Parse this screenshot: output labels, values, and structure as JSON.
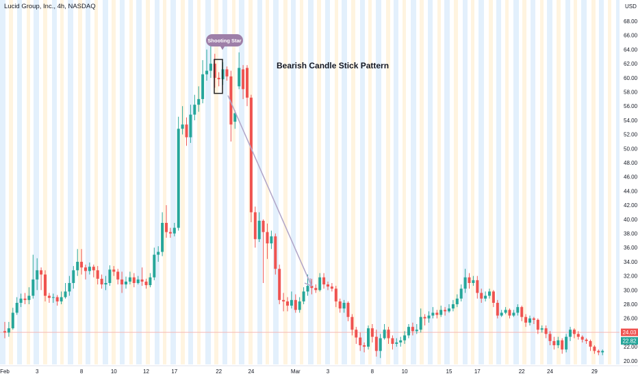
{
  "header": {
    "symbol_title": "Lucid Group, Inc., 4h, NASDAQ",
    "currency": "USD"
  },
  "annotations": {
    "pattern_title": "Bearish Candle Stick Pattern",
    "callout_label": "Shooting Star"
  },
  "price_labels": {
    "last": {
      "value": "24.03",
      "color": "#ef5350"
    },
    "current": {
      "value": "22.82",
      "color": "#26a69a"
    }
  },
  "colors": {
    "up": "#26a69a",
    "down": "#ef5350",
    "arrow": "#b2a7c9",
    "callout": "#9e7fa8",
    "band_blue": "#e3f0fc",
    "band_orange": "#fff4e0"
  },
  "chart_data": {
    "type": "candlestick",
    "title": "Lucid Group, Inc., 4h, NASDAQ",
    "ylabel": "USD",
    "ylim": [
      19.5,
      71
    ],
    "yticks": [
      20,
      22,
      24,
      26,
      28,
      30,
      32,
      34,
      36,
      38,
      40,
      42,
      44,
      46,
      48,
      50,
      52,
      54,
      56,
      58,
      60,
      62,
      64,
      66,
      68
    ],
    "x_tick_labels": [
      "Feb",
      "3",
      "8",
      "10",
      "12",
      "17",
      "22",
      "24",
      "Mar",
      "3",
      "8",
      "10",
      "15",
      "17",
      "22",
      "24",
      "29"
    ],
    "horizontal_line": 24.03,
    "candles": [
      [
        24.2,
        24.0,
        23.2,
        25.5
      ],
      [
        24.0,
        24.6,
        23.4,
        25.5
      ],
      [
        24.6,
        26.8,
        24.4,
        27.5
      ],
      [
        26.8,
        28.2,
        26.5,
        29.0
      ],
      [
        28.2,
        28.8,
        27.6,
        29.5
      ],
      [
        28.8,
        28.6,
        28.0,
        29.6
      ],
      [
        28.6,
        29.2,
        28.0,
        30.4
      ],
      [
        29.2,
        31.5,
        28.8,
        35.0
      ],
      [
        31.5,
        32.8,
        30.0,
        34.5
      ],
      [
        32.8,
        32.2,
        30.0,
        33.2
      ],
      [
        32.2,
        29.2,
        28.4,
        32.8
      ],
      [
        29.2,
        28.9,
        28.2,
        29.6
      ],
      [
        28.9,
        29.0,
        28.2,
        29.5
      ],
      [
        29.0,
        28.4,
        27.8,
        29.3
      ],
      [
        28.4,
        29.0,
        28.0,
        29.8
      ],
      [
        29.0,
        29.8,
        28.8,
        31.0
      ],
      [
        29.8,
        31.0,
        29.2,
        32.0
      ],
      [
        31.0,
        32.8,
        30.2,
        33.4
      ],
      [
        32.8,
        34.0,
        32.0,
        35.8
      ],
      [
        34.0,
        33.2,
        32.2,
        35.8
      ],
      [
        33.2,
        32.7,
        31.5,
        33.6
      ],
      [
        32.7,
        33.3,
        32.2,
        33.9
      ],
      [
        33.3,
        32.8,
        31.8,
        33.6
      ],
      [
        32.8,
        31.6,
        30.8,
        33.4
      ],
      [
        31.6,
        30.8,
        30.2,
        32.2
      ],
      [
        30.8,
        31.0,
        30.0,
        32.0
      ],
      [
        31.0,
        32.9,
        30.6,
        33.5
      ],
      [
        32.9,
        32.6,
        32.0,
        33.4
      ],
      [
        32.6,
        31.5,
        30.8,
        33.0
      ],
      [
        31.5,
        30.8,
        29.6,
        32.6
      ],
      [
        30.8,
        31.2,
        30.2,
        31.9
      ],
      [
        31.2,
        31.8,
        30.8,
        32.6
      ],
      [
        31.8,
        31.0,
        30.4,
        32.4
      ],
      [
        31.0,
        31.5,
        30.8,
        32.0
      ],
      [
        31.5,
        31.2,
        30.6,
        33.2
      ],
      [
        31.2,
        30.7,
        30.2,
        31.6
      ],
      [
        30.7,
        31.8,
        30.4,
        32.4
      ],
      [
        31.8,
        35.0,
        31.4,
        36.0
      ],
      [
        35.0,
        35.4,
        34.0,
        36.2
      ],
      [
        35.4,
        39.5,
        34.8,
        41.0
      ],
      [
        39.5,
        38.2,
        37.4,
        42.0
      ],
      [
        38.2,
        38.0,
        37.4,
        38.8
      ],
      [
        38.0,
        38.8,
        37.6,
        39.5
      ],
      [
        38.8,
        52.8,
        38.4,
        54.5
      ],
      [
        52.8,
        53.4,
        52.0,
        56.0
      ],
      [
        53.4,
        51.6,
        50.4,
        54.4
      ],
      [
        51.6,
        54.8,
        50.8,
        56.2
      ],
      [
        54.8,
        56.2,
        54.0,
        57.6
      ],
      [
        56.2,
        57.0,
        55.2,
        58.8
      ],
      [
        57.0,
        60.5,
        56.4,
        62.5
      ],
      [
        60.5,
        61.0,
        59.6,
        64.0
      ],
      [
        61.0,
        62.0,
        60.0,
        65.0
      ],
      [
        62.0,
        60.0,
        58.6,
        63.4
      ],
      [
        60.0,
        59.8,
        58.8,
        60.8
      ],
      [
        59.8,
        61.2,
        59.0,
        62.2
      ],
      [
        61.2,
        60.2,
        59.6,
        61.6
      ],
      [
        60.2,
        53.4,
        51.0,
        61.0
      ],
      [
        53.8,
        55.0,
        52.8,
        55.4
      ],
      [
        58.8,
        61.4,
        58.4,
        63.6
      ],
      [
        61.2,
        58.4,
        57.0,
        61.8
      ],
      [
        61.4,
        57.2,
        56.0,
        61.8
      ],
      [
        57.2,
        41.0,
        39.6,
        57.6
      ],
      [
        41.0,
        37.2,
        36.0,
        41.8
      ],
      [
        37.2,
        39.8,
        36.8,
        41.0
      ],
      [
        39.8,
        38.2,
        31.0,
        40.0
      ],
      [
        38.2,
        36.6,
        34.4,
        39.4
      ],
      [
        36.6,
        37.6,
        35.8,
        38.4
      ],
      [
        37.6,
        33.0,
        32.2,
        38.0
      ],
      [
        33.0,
        28.6,
        28.0,
        33.6
      ],
      [
        28.6,
        28.4,
        27.0,
        29.6
      ],
      [
        28.4,
        27.8,
        27.0,
        29.0
      ],
      [
        27.8,
        28.6,
        27.4,
        29.8
      ],
      [
        28.6,
        27.2,
        26.8,
        29.4
      ],
      [
        27.2,
        28.4,
        26.8,
        29.0
      ],
      [
        28.4,
        29.8,
        28.0,
        30.4
      ],
      [
        29.8,
        30.6,
        29.2,
        32.2
      ],
      [
        30.6,
        30.3,
        29.4,
        31.6
      ],
      [
        30.3,
        30.0,
        29.6,
        30.8
      ],
      [
        30.0,
        31.8,
        29.8,
        32.4
      ],
      [
        31.8,
        30.8,
        30.2,
        32.4
      ],
      [
        30.8,
        30.5,
        30.0,
        31.2
      ],
      [
        30.5,
        30.2,
        29.8,
        31.0
      ],
      [
        30.2,
        28.4,
        27.6,
        30.6
      ],
      [
        28.4,
        27.4,
        26.8,
        28.8
      ],
      [
        27.4,
        28.2,
        26.8,
        28.6
      ],
      [
        28.2,
        26.2,
        25.6,
        28.4
      ],
      [
        26.2,
        24.4,
        23.6,
        26.6
      ],
      [
        24.4,
        23.3,
        22.4,
        24.8
      ],
      [
        23.3,
        22.2,
        21.4,
        24.0
      ],
      [
        22.2,
        22.0,
        21.2,
        22.6
      ],
      [
        22.0,
        24.6,
        21.6,
        25.0
      ],
      [
        24.6,
        23.4,
        22.6,
        25.2
      ],
      [
        23.4,
        21.4,
        20.6,
        24.4
      ],
      [
        21.4,
        23.2,
        20.4,
        23.8
      ],
      [
        23.2,
        24.4,
        23.0,
        25.2
      ],
      [
        24.4,
        23.2,
        22.4,
        24.8
      ],
      [
        23.2,
        22.4,
        21.6,
        23.6
      ],
      [
        22.4,
        22.6,
        22.0,
        23.2
      ],
      [
        22.6,
        22.9,
        22.0,
        23.4
      ],
      [
        22.9,
        23.6,
        22.4,
        24.2
      ],
      [
        23.6,
        24.8,
        23.2,
        25.2
      ],
      [
        24.8,
        24.2,
        23.6,
        25.4
      ],
      [
        24.2,
        24.4,
        23.8,
        25.2
      ],
      [
        24.4,
        26.2,
        24.0,
        27.4
      ],
      [
        26.2,
        26.0,
        25.0,
        26.6
      ],
      [
        26.0,
        26.4,
        25.4,
        27.0
      ],
      [
        26.4,
        26.8,
        26.0,
        27.6
      ],
      [
        26.8,
        26.5,
        26.0,
        27.2
      ],
      [
        26.5,
        27.2,
        26.2,
        27.8
      ],
      [
        27.2,
        27.0,
        26.4,
        27.6
      ],
      [
        27.0,
        27.4,
        26.8,
        28.0
      ],
      [
        27.4,
        28.0,
        27.0,
        28.6
      ],
      [
        28.0,
        28.8,
        27.6,
        29.4
      ],
      [
        28.8,
        30.2,
        28.4,
        30.8
      ],
      [
        30.2,
        31.8,
        29.6,
        33.0
      ],
      [
        31.8,
        31.0,
        30.2,
        32.4
      ],
      [
        31.0,
        31.4,
        30.6,
        32.0
      ],
      [
        31.4,
        29.6,
        28.8,
        32.0
      ],
      [
        29.6,
        28.8,
        28.2,
        30.2
      ],
      [
        28.8,
        29.2,
        28.4,
        29.8
      ],
      [
        29.2,
        29.8,
        28.8,
        30.2
      ],
      [
        29.8,
        28.2,
        27.6,
        30.0
      ],
      [
        28.2,
        26.4,
        26.0,
        28.6
      ],
      [
        26.4,
        26.8,
        26.2,
        27.2
      ],
      [
        26.8,
        27.2,
        26.6,
        27.6
      ],
      [
        27.2,
        26.4,
        26.0,
        27.4
      ],
      [
        26.4,
        26.8,
        26.2,
        27.2
      ],
      [
        26.8,
        27.6,
        26.4,
        28.0
      ],
      [
        27.6,
        26.2,
        25.6,
        27.8
      ],
      [
        26.2,
        25.4,
        24.8,
        26.6
      ],
      [
        25.4,
        26.0,
        25.0,
        26.4
      ],
      [
        26.0,
        25.8,
        25.2,
        26.2
      ],
      [
        25.8,
        24.4,
        23.8,
        26.0
      ],
      [
        24.4,
        24.6,
        24.0,
        25.0
      ],
      [
        24.6,
        23.8,
        23.2,
        25.0
      ],
      [
        23.8,
        22.8,
        22.2,
        24.2
      ],
      [
        22.8,
        22.2,
        21.6,
        23.4
      ],
      [
        22.2,
        22.9,
        21.8,
        23.4
      ],
      [
        22.9,
        21.6,
        21.0,
        23.2
      ],
      [
        21.6,
        23.4,
        21.2,
        23.8
      ],
      [
        23.4,
        24.4,
        22.8,
        24.8
      ],
      [
        24.4,
        23.8,
        23.2,
        24.6
      ],
      [
        23.8,
        23.4,
        23.0,
        24.2
      ],
      [
        23.4,
        23.0,
        22.6,
        23.6
      ],
      [
        23.0,
        22.8,
        22.4,
        23.2
      ],
      [
        22.8,
        22.0,
        21.4,
        23.0
      ],
      [
        22.0,
        21.4,
        21.0,
        22.2
      ],
      [
        21.4,
        21.2,
        20.8,
        21.6
      ],
      [
        21.2,
        21.4,
        20.8,
        21.6
      ]
    ]
  }
}
